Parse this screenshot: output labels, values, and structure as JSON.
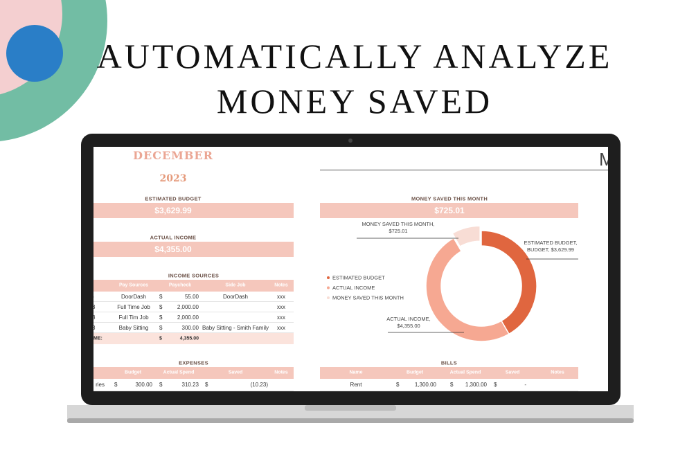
{
  "header": {
    "title_line1": "AUTOMATICALLY ANALYZE",
    "title_line2": "MONEY SAVED"
  },
  "sheet": {
    "month": "DECEMBER",
    "year": "2023",
    "right_heading": "M",
    "estimated_budget": {
      "label": "ESTIMATED BUDGET",
      "value": "$3,629.99"
    },
    "actual_income": {
      "label": "ACTUAL INCOME",
      "value": "$4,355.00"
    },
    "money_saved": {
      "label": "MONEY SAVED THIS MONTH",
      "value": "$725.01"
    },
    "income_sources": {
      "title": "INCOME SOURCES",
      "columns": {
        "source": "Pay Sources",
        "paycheck": "Paycheck",
        "side_job": "Side Job",
        "notes": "Notes"
      },
      "rows": [
        {
          "id": ")",
          "source": "DoorDash",
          "currency": "$",
          "paycheck": "55.00",
          "side_job": "DoorDash",
          "notes": "xxx"
        },
        {
          "id": "3",
          "source": "Full Time Job",
          "currency": "$",
          "paycheck": "2,000.00",
          "notes": "xxx"
        },
        {
          "id": "3",
          "source": "Full Tim Job",
          "currency": "$",
          "paycheck": "2,000.00",
          "notes": "xxx"
        },
        {
          "id": "3",
          "source": "Baby Sitting",
          "currency": "$",
          "paycheck": "300.00",
          "side_job": "Baby Sitting - Smith Family",
          "notes": "xxx"
        }
      ],
      "total": {
        "label": "ME:",
        "currency": "$",
        "amount": "4,355.00"
      }
    },
    "expenses": {
      "title": "EXPENSES",
      "columns": {
        "budget": "Budget",
        "actual": "Actual Spend",
        "saved": "Saved",
        "notes": "Notes"
      },
      "rows": [
        {
          "category": "ries",
          "currency1": "$",
          "budget": "300.00",
          "currency2": "$",
          "actual": "310.23",
          "currency3": "$",
          "saved": "(10.23)"
        }
      ]
    },
    "bills": {
      "title": "BILLS",
      "columns": {
        "name": "Name",
        "budget": "Budget",
        "actual": "Actual Spend",
        "saved": "Saved",
        "notes": "Notes"
      },
      "rows": [
        {
          "name": "Rent",
          "currency1": "$",
          "budget": "1,300.00",
          "currency2": "$",
          "actual": "1,300.00",
          "currency3": "$",
          "saved": "-"
        }
      ]
    }
  },
  "chart_data": {
    "type": "pie",
    "donut": true,
    "categories": [
      "ESTIMATED BUDGET",
      "ACTUAL INCOME",
      "MONEY SAVED THIS MONTH"
    ],
    "values": [
      3629.99,
      4355.0,
      725.01
    ],
    "colors": [
      "#e0663f",
      "#f6a892",
      "#f8ddd5"
    ],
    "annotations": [
      [
        "ESTIMATED BUDGET,",
        "BUDGET, $3,629.99"
      ],
      [
        "ACTUAL INCOME,",
        "$4,355.00"
      ],
      [
        "MONEY SAVED THIS MONTH,",
        "$725.01"
      ]
    ]
  }
}
